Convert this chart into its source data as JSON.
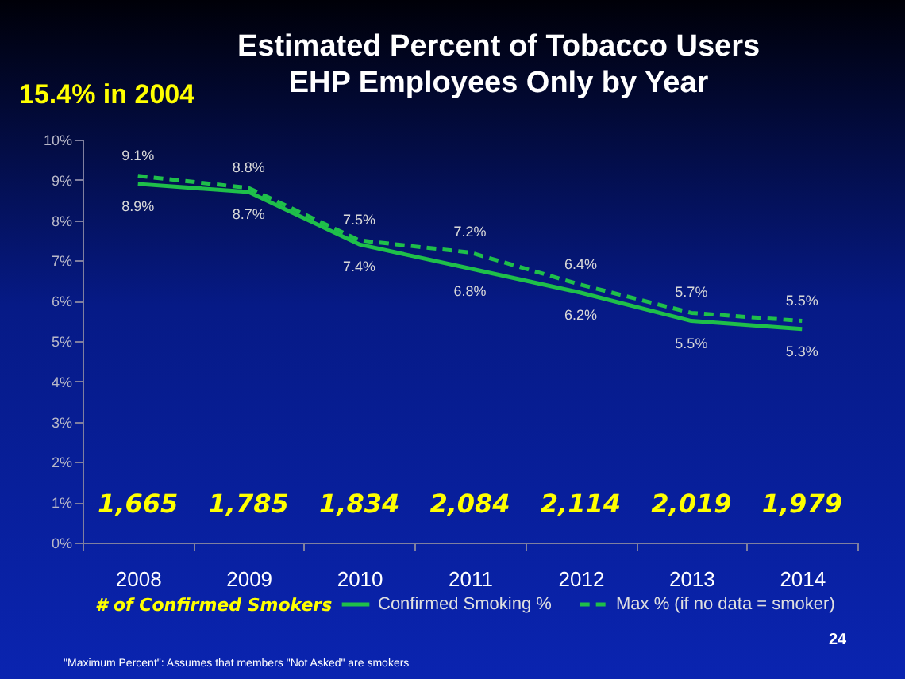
{
  "chart_data": {
    "type": "line",
    "title": [
      "Estimated Percent of Tobacco Users",
      "EHP Employees Only by Year"
    ],
    "categories": [
      "2008",
      "2009",
      "2010",
      "2011",
      "2012",
      "2013",
      "2014"
    ],
    "series": [
      {
        "name": "Confirmed Smoking %",
        "color": "#1fbf4a",
        "line_style": "solid",
        "values": [
          8.9,
          8.7,
          7.4,
          6.8,
          6.2,
          5.5,
          5.3
        ],
        "value_labels": [
          "8.9%",
          "8.7%",
          "7.4%",
          "6.8%",
          "6.2%",
          "5.5%",
          "5.3%"
        ]
      },
      {
        "name": "Max % (if no data = smoker)",
        "color": "#1fbf4a",
        "line_style": "dashed",
        "values": [
          9.1,
          8.8,
          7.5,
          7.2,
          6.4,
          5.7,
          5.5
        ],
        "value_labels": [
          "9.1%",
          "8.8%",
          "7.5%",
          "7.2%",
          "6.4%",
          "5.7%",
          "5.5%"
        ]
      }
    ],
    "ylim": [
      0,
      10
    ],
    "yticks": [
      {
        "value": 0,
        "label": "0%"
      },
      {
        "value": 1,
        "label": "1%"
      },
      {
        "value": 2,
        "label": "2%"
      },
      {
        "value": 3,
        "label": "3%"
      },
      {
        "value": 4,
        "label": "4%"
      },
      {
        "value": 5,
        "label": "5%"
      },
      {
        "value": 6,
        "label": "6%"
      },
      {
        "value": 7,
        "label": "7%"
      },
      {
        "value": 8,
        "label": "8%"
      },
      {
        "value": 9,
        "label": "9%"
      },
      {
        "value": 10,
        "label": "10%"
      }
    ],
    "grid": false,
    "legend": "bottom",
    "marker": "none",
    "annotations": [
      "15.4% in 2004",
      "# of Confirmed Smokers",
      "24",
      "\"Maximum Percent\": Assumes that members \"Not Asked\" are smokers",
      "1,665",
      "1,785",
      "1,834",
      "2,084",
      "2,114",
      "2,019",
      "1,979"
    ]
  }
}
